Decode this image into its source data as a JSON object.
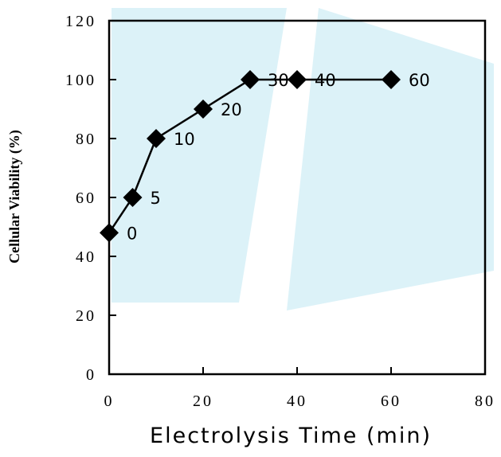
{
  "chart_data": {
    "type": "line",
    "x": [
      0,
      5,
      10,
      20,
      30,
      40,
      60
    ],
    "y": [
      48,
      60,
      80,
      90,
      100,
      100,
      100
    ],
    "point_labels": [
      "0",
      "5",
      "10",
      "20",
      "30",
      "40",
      "60"
    ],
    "xlabel": "Electrolysis Time (min)",
    "ylabel": "Cellular Viability (%)",
    "xlim": [
      0,
      80
    ],
    "ylim": [
      0,
      120
    ],
    "x_ticks": [
      0,
      20,
      40,
      60,
      80
    ],
    "y_ticks": [
      0,
      20,
      40,
      60,
      80,
      100,
      120
    ],
    "x_tick_labels": [
      "0",
      "20",
      "40",
      "60",
      "80"
    ],
    "y_tick_labels": [
      "0",
      "20",
      "40",
      "60",
      "80",
      "100",
      "120"
    ],
    "marker": "diamond",
    "grid": false,
    "colors": {
      "line": "#000000",
      "marker": "#000000",
      "watermark": "#bfe7f2"
    }
  }
}
